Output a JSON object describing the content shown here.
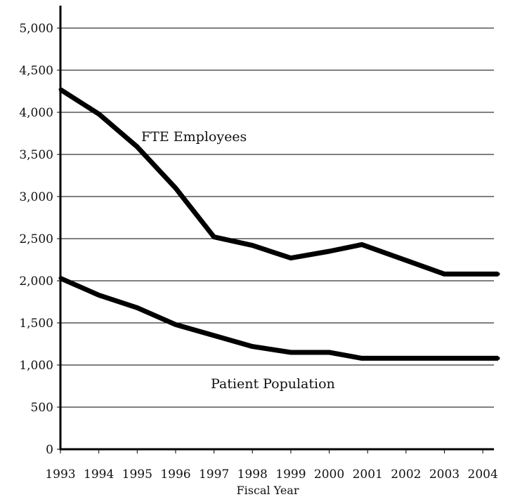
{
  "chart_data": {
    "type": "line",
    "title": "",
    "xlabel": "Fiscal Year",
    "ylabel": "",
    "categories": [
      "1993",
      "1994",
      "1995",
      "1996",
      "1997",
      "1998",
      "1999",
      "2000",
      "2001",
      "2002",
      "2003",
      "2004"
    ],
    "ylim": [
      0,
      5000
    ],
    "yticks": [
      {
        "value": 0,
        "label": "0"
      },
      {
        "value": 500,
        "label": "500"
      },
      {
        "value": 1000,
        "label": "1,000"
      },
      {
        "value": 1500,
        "label": "1,500"
      },
      {
        "value": 2000,
        "label": "2,000"
      },
      {
        "value": 2500,
        "label": "2,500"
      },
      {
        "value": 3000,
        "label": "3,000"
      },
      {
        "value": 3500,
        "label": "3,500"
      },
      {
        "value": 4000,
        "label": "4,000"
      },
      {
        "value": 4500,
        "label": "4,500"
      },
      {
        "value": 5000,
        "label": "5,000"
      }
    ],
    "grid": true,
    "series": [
      {
        "name": "FTE Employees",
        "points": [
          {
            "x": 1993.0,
            "y": 4270
          },
          {
            "x": 1994.0,
            "y": 3980
          },
          {
            "x": 1995.0,
            "y": 3590
          },
          {
            "x": 1996.0,
            "y": 3100
          },
          {
            "x": 1997.0,
            "y": 2520
          },
          {
            "x": 1998.0,
            "y": 2420
          },
          {
            "x": 1999.0,
            "y": 2270
          },
          {
            "x": 2000.0,
            "y": 2350
          },
          {
            "x": 2000.85,
            "y": 2430
          },
          {
            "x": 2003.0,
            "y": 2080
          },
          {
            "x": 2004.4,
            "y": 2080
          }
        ]
      },
      {
        "name": "Patient Population",
        "points": [
          {
            "x": 1993.0,
            "y": 2030
          },
          {
            "x": 1994.0,
            "y": 1830
          },
          {
            "x": 1995.0,
            "y": 1680
          },
          {
            "x": 1996.0,
            "y": 1480
          },
          {
            "x": 1997.0,
            "y": 1350
          },
          {
            "x": 1998.0,
            "y": 1220
          },
          {
            "x": 1999.0,
            "y": 1150
          },
          {
            "x": 2000.0,
            "y": 1150
          },
          {
            "x": 2000.85,
            "y": 1080
          },
          {
            "x": 2003.0,
            "y": 1080
          },
          {
            "x": 2004.4,
            "y": 1080
          }
        ]
      }
    ],
    "colors": {
      "line": "#000000",
      "grid": "#000000",
      "text": "#111111"
    }
  }
}
